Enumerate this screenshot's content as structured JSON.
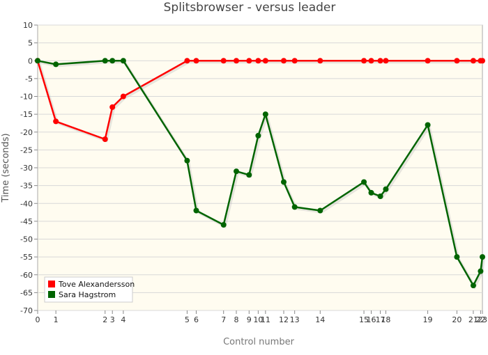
{
  "chart_data": {
    "type": "line",
    "title": "Splitsbrowser - versus leader",
    "xlabel": "Control number",
    "ylabel": "Time (seconds)",
    "x_ticks": [
      "0",
      "1",
      "2",
      "3",
      "4",
      "5",
      "6",
      "7",
      "8",
      "9",
      "10",
      "11",
      "12",
      "13",
      "14",
      "15",
      "16",
      "17",
      "18",
      "19",
      "20",
      "21",
      "22",
      "23"
    ],
    "x_tick_positions": [
      0,
      1,
      3.7,
      4.1,
      4.7,
      8.2,
      8.7,
      10.2,
      10.9,
      11.6,
      12.1,
      12.5,
      13.5,
      14.1,
      15.5,
      17.9,
      18.3,
      18.8,
      19.1,
      21.4,
      23.0,
      23.9,
      24.3,
      24.4
    ],
    "ylim": [
      -70,
      10
    ],
    "yticks": [
      10,
      5,
      0,
      -5,
      -10,
      -15,
      -20,
      -25,
      -30,
      -35,
      -40,
      -45,
      -50,
      -55,
      -60,
      -65,
      -70
    ],
    "xlim": [
      0,
      24.4
    ],
    "grid": true,
    "legend_position": "bottom-left",
    "series": [
      {
        "name": "Tove Alexandersson",
        "color": "#ff0000",
        "values": [
          0,
          -17,
          -22,
          -13,
          -10,
          0,
          0,
          0,
          0,
          0,
          0,
          0,
          0,
          0,
          0,
          0,
          0,
          0,
          0,
          0,
          0,
          0,
          0,
          0
        ]
      },
      {
        "name": "Sara Hagstrom",
        "color": "#006400",
        "values": [
          0,
          -1,
          0,
          0,
          0,
          -28,
          -42,
          -46,
          -31,
          -32,
          -21,
          -15,
          -34,
          -41,
          -42,
          -34,
          -37,
          -38,
          -36,
          -18,
          -55,
          -63,
          -59,
          -55
        ]
      }
    ]
  }
}
